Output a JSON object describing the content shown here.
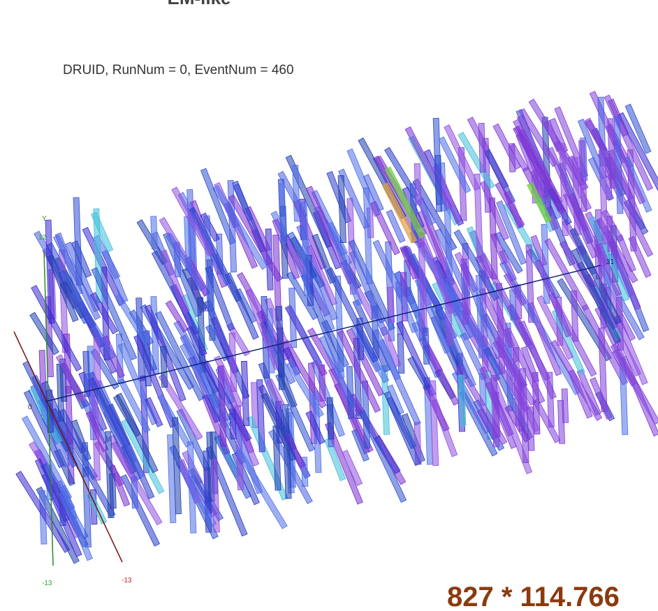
{
  "header": {
    "title": "EM-like"
  },
  "run_info": "DRUID, RunNum = 0, EventNum = 460",
  "axes": {
    "y_label": "Y",
    "y_max": "12",
    "origin": "0",
    "y_min": "-13",
    "x_min": "-13",
    "z_max": "31"
  },
  "footer": "827 * 114.766"
}
